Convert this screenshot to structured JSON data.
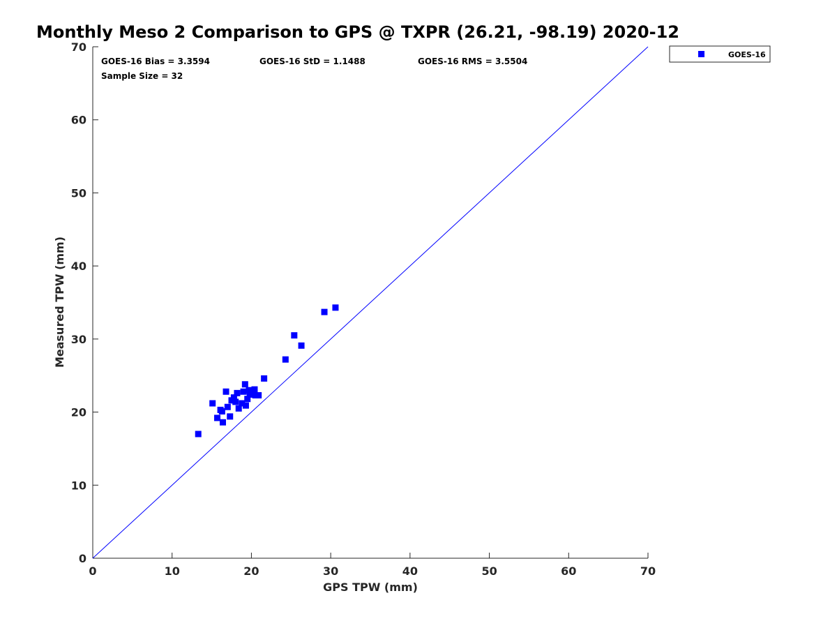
{
  "chart_data": {
    "type": "scatter",
    "title": "Monthly Meso 2 Comparison to GPS @ TXPR (26.21, -98.19) 2020-12",
    "xlabel": "GPS TPW (mm)",
    "ylabel": "Measured TPW (mm)",
    "xlim": [
      0,
      70
    ],
    "ylim": [
      0,
      70
    ],
    "xticks": [
      "0",
      "10",
      "20",
      "30",
      "40",
      "50",
      "60",
      "70"
    ],
    "yticks": [
      "0",
      "10",
      "20",
      "30",
      "40",
      "50",
      "60",
      "70"
    ],
    "grid": false,
    "legend_position": "outside-top-right",
    "reference_line": {
      "type": "identity",
      "from": [
        0,
        0
      ],
      "to": [
        70,
        70
      ],
      "color": "#0000ff"
    },
    "stats": {
      "bias": "GOES-16 Bias = 3.3594",
      "std": "GOES-16 StD = 1.1488",
      "rms": "GOES-16 RMS = 3.5504",
      "sample": "Sample Size = 32"
    },
    "series": [
      {
        "name": "GOES-16",
        "color": "#0000ff",
        "marker": "square",
        "points": [
          [
            13.3,
            17.0
          ],
          [
            15.1,
            21.2
          ],
          [
            15.7,
            19.2
          ],
          [
            16.1,
            20.3
          ],
          [
            16.3,
            20.1
          ],
          [
            16.4,
            18.6
          ],
          [
            16.8,
            22.8
          ],
          [
            17.0,
            20.7
          ],
          [
            17.3,
            19.4
          ],
          [
            17.5,
            21.6
          ],
          [
            17.8,
            22.0
          ],
          [
            18.0,
            21.4
          ],
          [
            18.2,
            22.6
          ],
          [
            18.4,
            20.5
          ],
          [
            18.8,
            21.2
          ],
          [
            19.0,
            22.8
          ],
          [
            19.2,
            23.8
          ],
          [
            19.3,
            20.9
          ],
          [
            19.5,
            21.8
          ],
          [
            19.7,
            23.0
          ],
          [
            20.0,
            22.9
          ],
          [
            20.2,
            22.7
          ],
          [
            20.4,
            23.1
          ],
          [
            20.5,
            22.3
          ],
          [
            20.9,
            22.3
          ],
          [
            21.6,
            24.6
          ],
          [
            24.3,
            27.2
          ],
          [
            25.4,
            30.5
          ],
          [
            26.3,
            29.1
          ],
          [
            29.2,
            33.7
          ],
          [
            30.6,
            34.3
          ],
          [
            19.8,
            22.4
          ]
        ]
      }
    ]
  }
}
